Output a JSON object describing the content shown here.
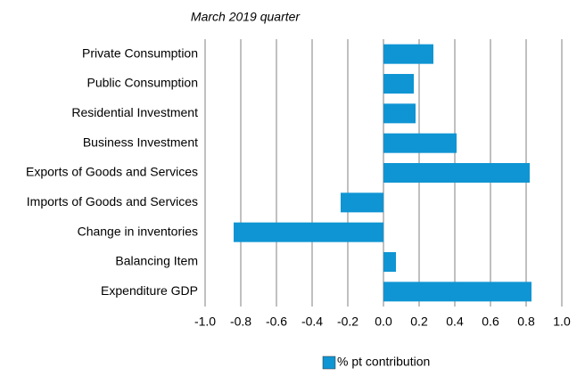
{
  "chart_data": {
    "type": "bar",
    "orientation": "horizontal",
    "title": "March 2019 quarter",
    "categories": [
      "Private Consumption",
      "Public Consumption",
      "Residential Investment",
      "Business Investment",
      "Exports of Goods and Services",
      "Imports of Goods and Services",
      "Change in inventories",
      "Balancing Item",
      "Expenditure GDP"
    ],
    "series": [
      {
        "name": "% pt contribution",
        "color": "#0f95d3",
        "values": [
          0.28,
          0.17,
          0.18,
          0.41,
          0.82,
          -0.24,
          -0.84,
          0.07,
          0.83
        ]
      }
    ],
    "xlim": [
      -1.0,
      1.0
    ],
    "xticks": [
      {
        "value": -1.0,
        "label": "-1.0"
      },
      -0.8,
      -0.6,
      -0.4,
      -0.2,
      {
        "value": 0,
        "label": "0.0"
      },
      0.2,
      0.4,
      0.6,
      0.8,
      {
        "value": 1.0,
        "label": "1.0"
      }
    ],
    "grid": true,
    "legend": "bottom"
  }
}
